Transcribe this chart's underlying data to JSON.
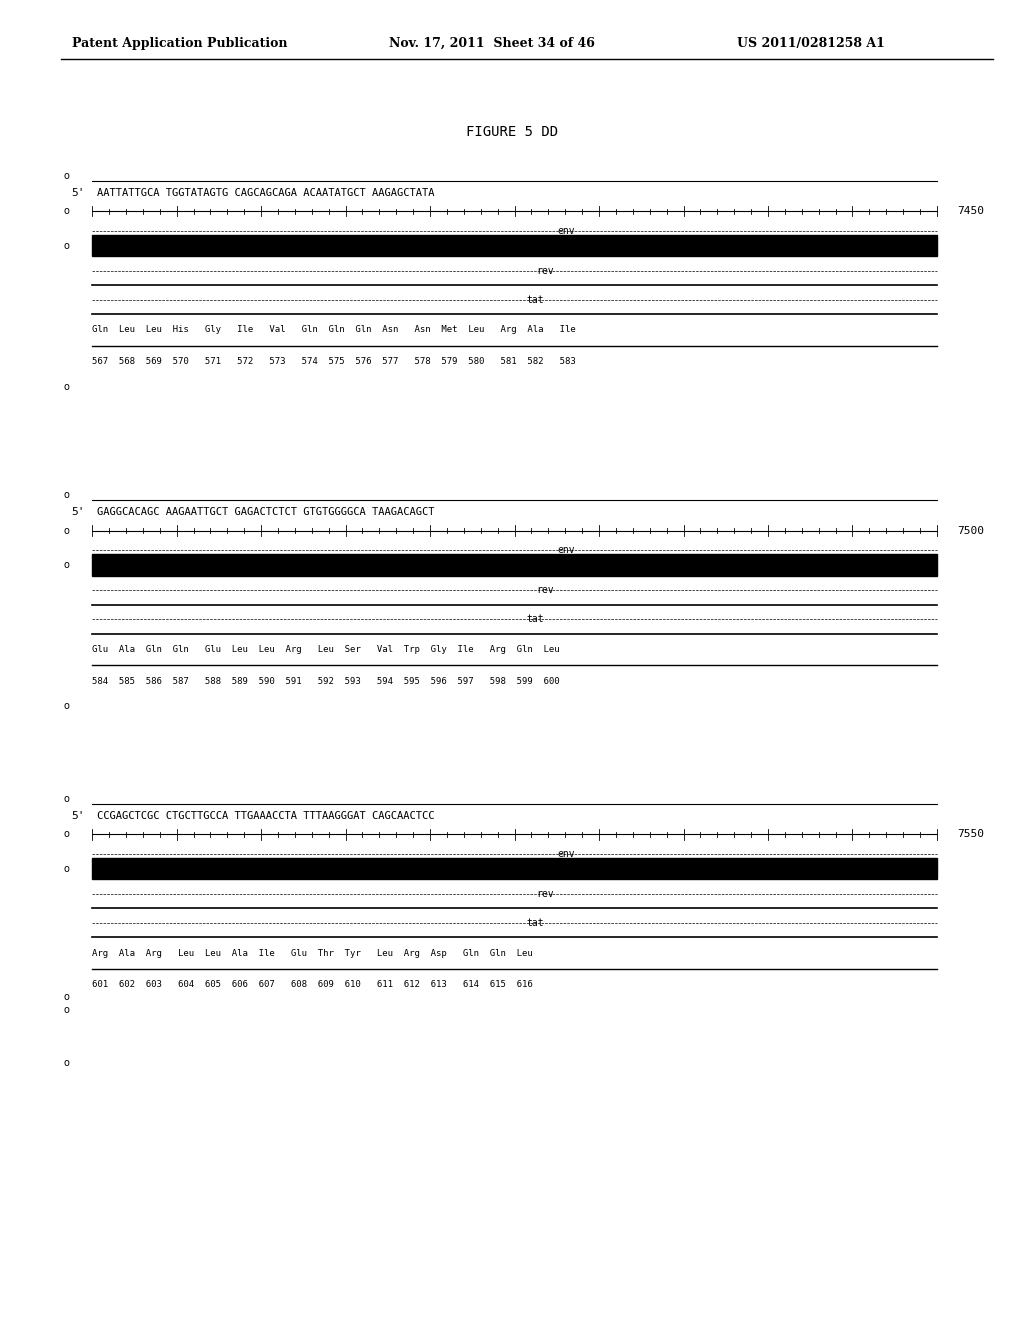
{
  "header_left": "Patent Application Publication",
  "header_mid": "Nov. 17, 2011  Sheet 34 of 46",
  "header_right": "US 2011/0281258 A1",
  "figure_title": "FIGURE 5 DD",
  "blocks": [
    {
      "position_number": "7450",
      "sequence": "AATTATTGCA TGGTATAGTG CAGCAGCAGA ACAATATGCT AAGAGCTATA",
      "amino_acids": "Gln  Leu  Leu  His   Gly   Ile   Val   Gln  Gln  Gln  Asn   Asn  Met  Leu   Arg  Ala   Ile",
      "numbers": "567  568  569  570   571   572   573   574  575  576  577   578  579  580   581  582   583"
    },
    {
      "position_number": "7500",
      "sequence": "GAGGCACAGC AAGAATTGCT GAGACTCTCT GTGTGGGGCA TAAGACAGCT",
      "amino_acids": "Glu  Ala  Gln  Gln   Glu  Leu  Leu  Arg   Leu  Ser   Val  Trp  Gly  Ile   Arg  Gln  Leu",
      "numbers": "584  585  586  587   588  589  590  591   592  593   594  595  596  597   598  599  600"
    },
    {
      "position_number": "7550",
      "sequence": "CCGAGCTCGC CTGCTTGCCA TTGAAACCTA TTTAAGGGAT CAGCAACTCC",
      "amino_acids": "Arg  Ala  Arg   Leu  Leu  Ala  Ile   Glu  Thr  Tyr   Leu  Arg  Asp   Gln  Gln  Leu",
      "numbers": "601  602  603   604  605  606  607   608  609  610   611  612  613   614  615  616"
    }
  ]
}
